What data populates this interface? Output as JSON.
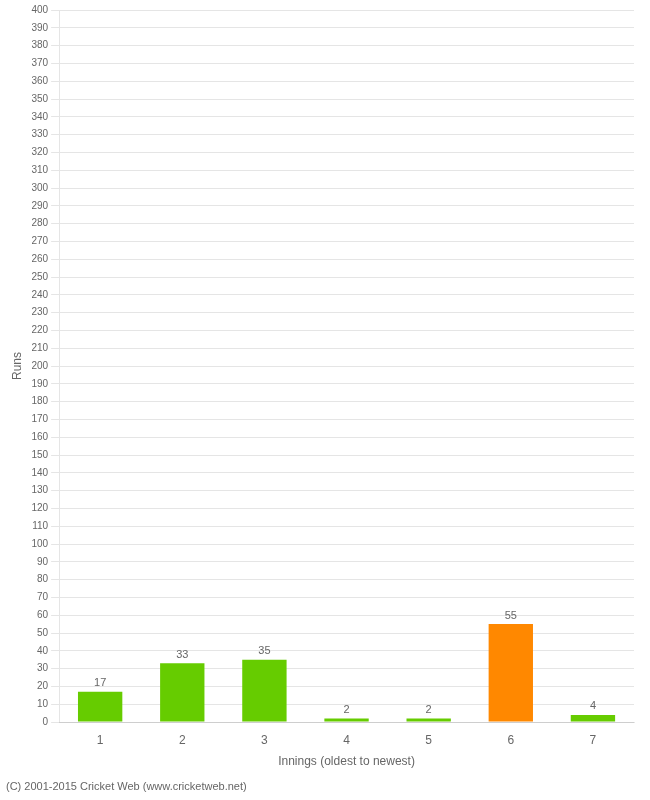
{
  "chart_data": {
    "type": "bar",
    "categories": [
      "1",
      "2",
      "3",
      "4",
      "5",
      "6",
      "7"
    ],
    "values": [
      17,
      33,
      35,
      2,
      2,
      55,
      4
    ],
    "colors": [
      "#66cc00",
      "#66cc00",
      "#66cc00",
      "#66cc00",
      "#66cc00",
      "#ff8800",
      "#66cc00"
    ],
    "xlabel": "Innings (oldest to newest)",
    "ylabel": "Runs",
    "ylim": [
      0,
      400
    ],
    "yticks": [
      0,
      10,
      20,
      30,
      40,
      50,
      60,
      70,
      80,
      90,
      100,
      110,
      120,
      130,
      140,
      150,
      160,
      170,
      180,
      190,
      200,
      210,
      220,
      230,
      240,
      250,
      260,
      270,
      280,
      290,
      300,
      310,
      320,
      330,
      340,
      350,
      360,
      370,
      380,
      390,
      400
    ],
    "grid": true,
    "data_labels": true,
    "annotations": [
      "(C) 2001-2015 Cricket Web (www.cricketweb.net)"
    ]
  }
}
